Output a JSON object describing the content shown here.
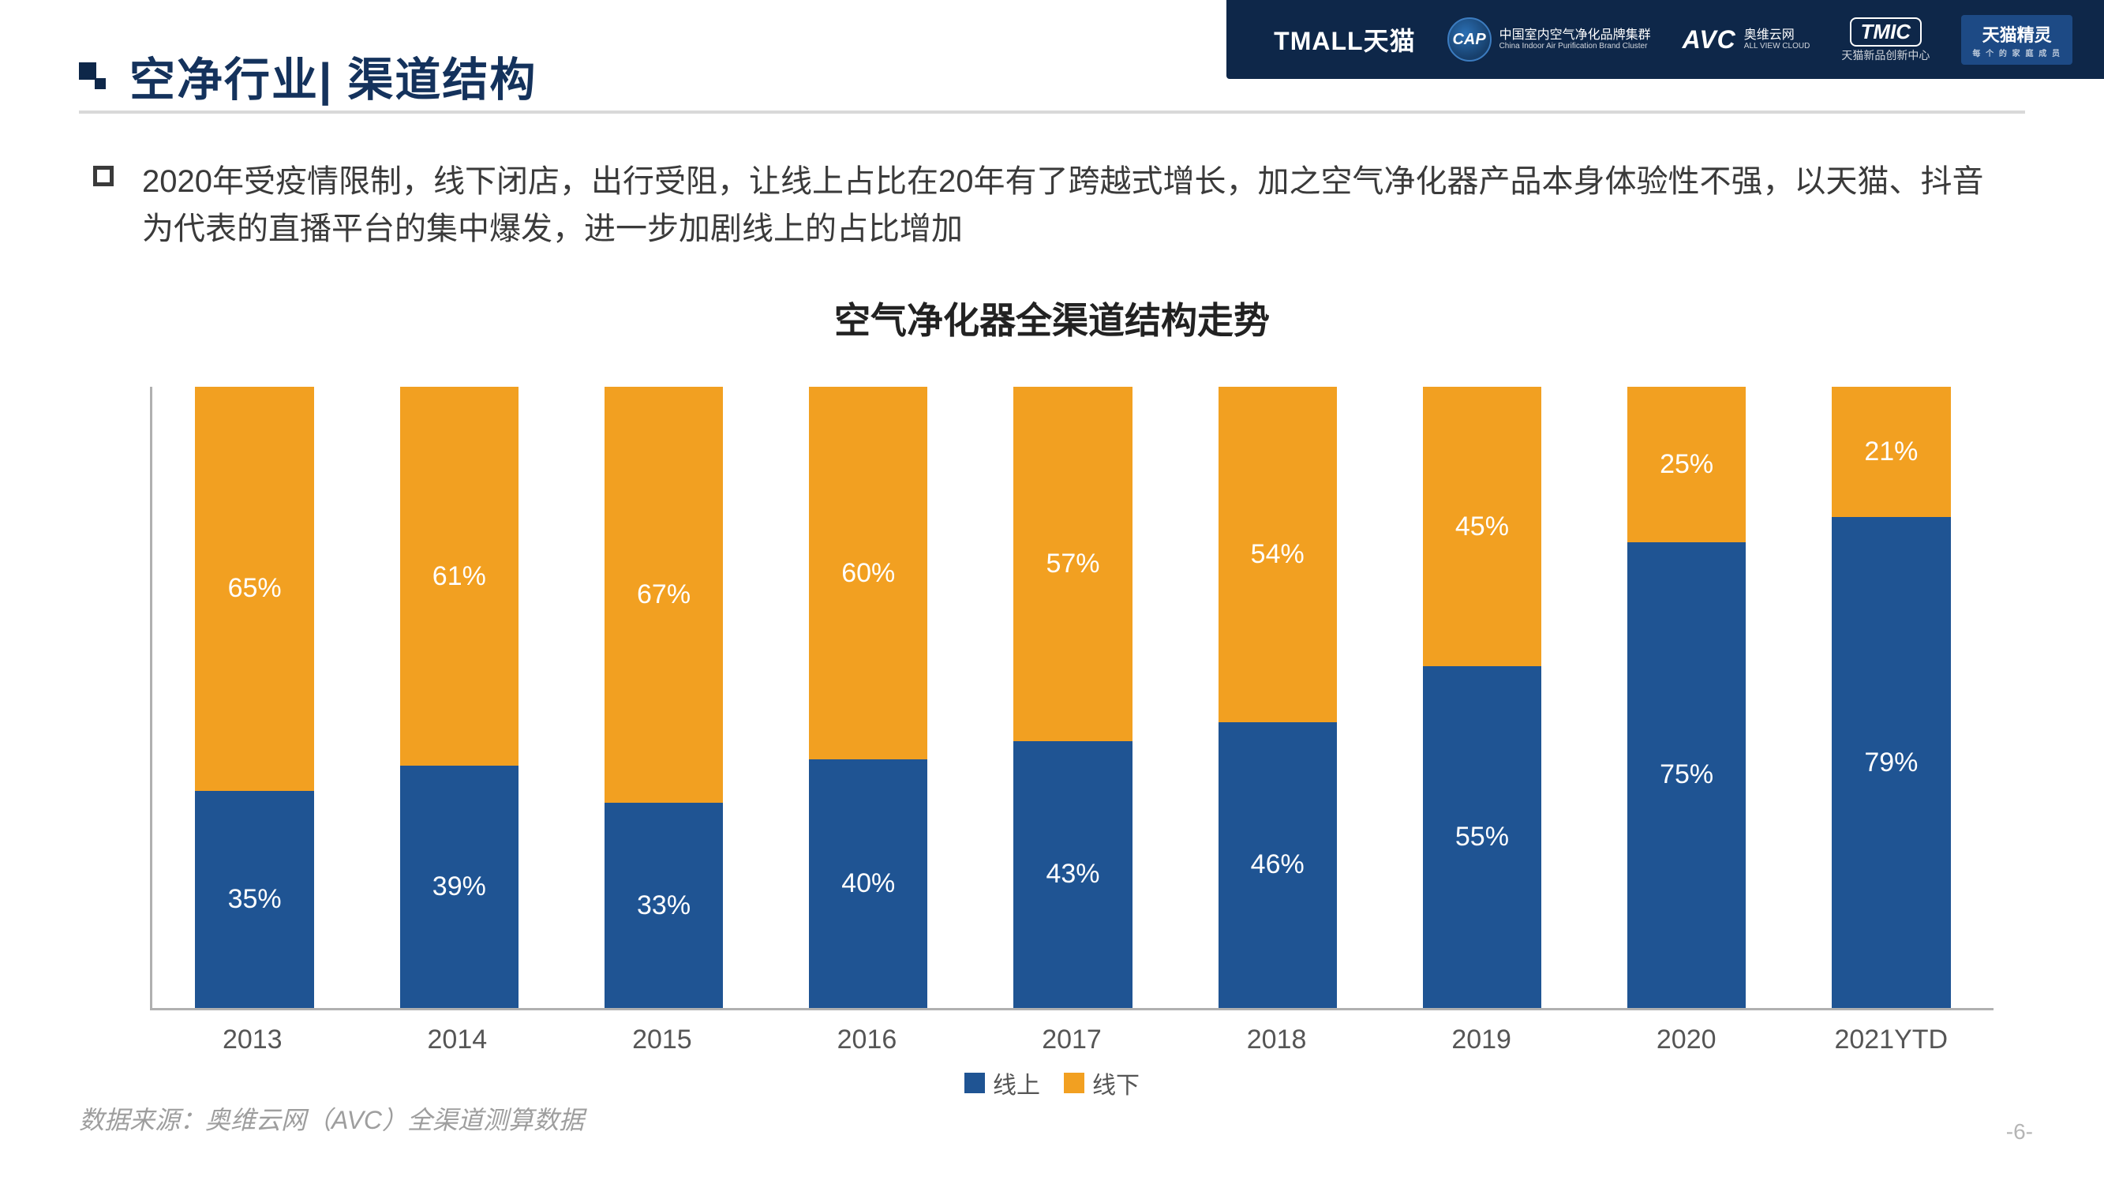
{
  "header": {
    "bg_color": "#0e2749",
    "logos": {
      "tmall": {
        "text": "TMALL天猫"
      },
      "cap": {
        "badge": "CAP",
        "line1": "中国室内空气净化品牌集群",
        "line2": "China Indoor Air Purification Brand Cluster"
      },
      "avc": {
        "text": "AVC",
        "sub": "奥维云网",
        "tiny": "ALL VIEW CLOUD"
      },
      "tmic": {
        "text": "TMIC",
        "sub": "天猫新品创新中心"
      },
      "genie": {
        "text": "天猫精灵",
        "sub": "每 个 的 家 庭 成 员"
      }
    }
  },
  "title": "空净行业| 渠道结构",
  "description": "2020年受疫情限制，线下闭店，出行受阻，让线上占比在20年有了跨越式增长，加之空气净化器产品本身体验性不强，以天猫、抖音为代表的直播平台的集中爆发，进一步加剧线上的占比增加",
  "chart": {
    "title": "空气净化器全渠道结构走势",
    "type": "stacked-bar-100pct",
    "categories": [
      "2013",
      "2014",
      "2015",
      "2016",
      "2017",
      "2018",
      "2019",
      "2020",
      "2021YTD"
    ],
    "series": [
      {
        "name": "线上",
        "color": "#1f5493",
        "values": [
          35,
          39,
          33,
          40,
          43,
          46,
          55,
          75,
          79
        ]
      },
      {
        "name": "线下",
        "color": "#f2a021",
        "values": [
          65,
          61,
          67,
          60,
          57,
          54,
          45,
          25,
          21
        ]
      }
    ],
    "label_color": "#ffffff",
    "label_fontsize": 34,
    "axis_color": "#b0b0b0",
    "xaxis_fontsize": 34,
    "bar_width_pct": 58,
    "background": "#ffffff"
  },
  "legend": {
    "items": [
      {
        "label": "线上",
        "color": "#1f5493"
      },
      {
        "label": "线下",
        "color": "#f2a021"
      }
    ]
  },
  "footer": {
    "source": "数据来源：奥维云网（AVC）全渠道测算数据",
    "page": "-6-"
  }
}
